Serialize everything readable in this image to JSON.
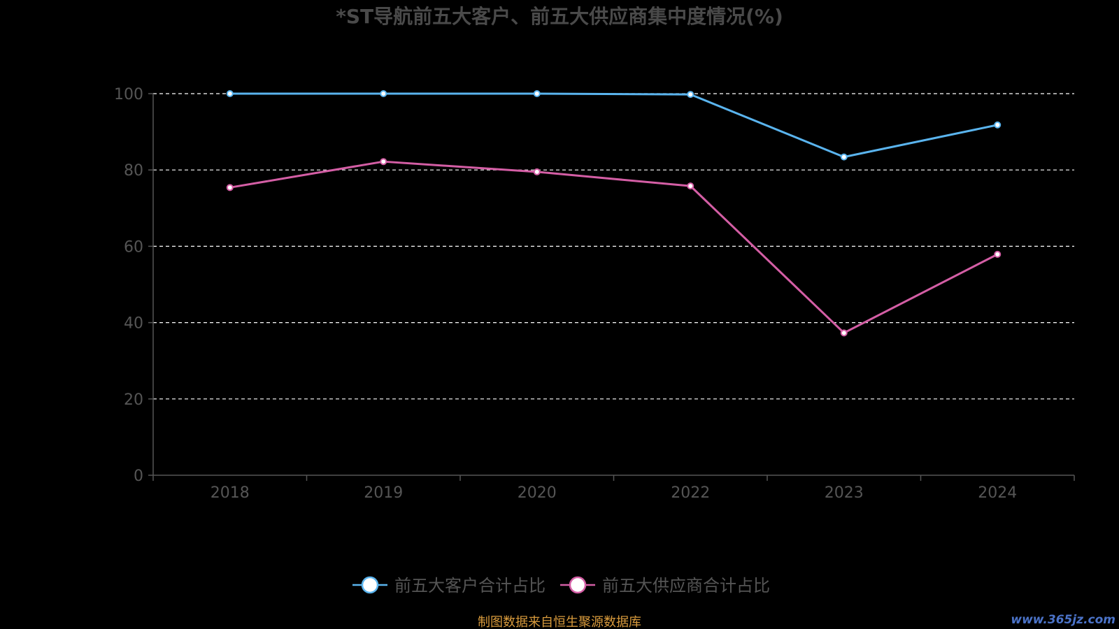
{
  "chart_data": {
    "type": "line",
    "title": "*ST导航前五大客户、前五大供应商集中度情况(%)",
    "categories": [
      "2018",
      "2019",
      "2020",
      "2022",
      "2023",
      "2024"
    ],
    "ylim": [
      0,
      100
    ],
    "yticks": [
      0,
      20,
      40,
      60,
      80,
      100
    ],
    "grid": true,
    "grid_style": "dashed",
    "legend_position": "bottom-center",
    "series": [
      {
        "name": "前五大客户合计占比",
        "color": "#5ab4ee",
        "values": [
          100,
          100,
          100,
          99.8,
          83.4,
          91.8
        ]
      },
      {
        "name": "前五大供应商合计占比",
        "color": "#d45ea5",
        "values": [
          75.4,
          82.2,
          79.5,
          75.8,
          37.3,
          57.9
        ]
      }
    ]
  },
  "colors": {
    "background": "#000000",
    "title": "#4a4a4a",
    "axis_text": "#555555",
    "axis_line": "#555555",
    "grid": "#ffffff",
    "legend_text": "#555555",
    "source_text": "#d89a3c",
    "watermark": "#4b73c8"
  },
  "source_note": "制图数据来自恒生聚源数据库",
  "watermark": "www.365jz.com"
}
